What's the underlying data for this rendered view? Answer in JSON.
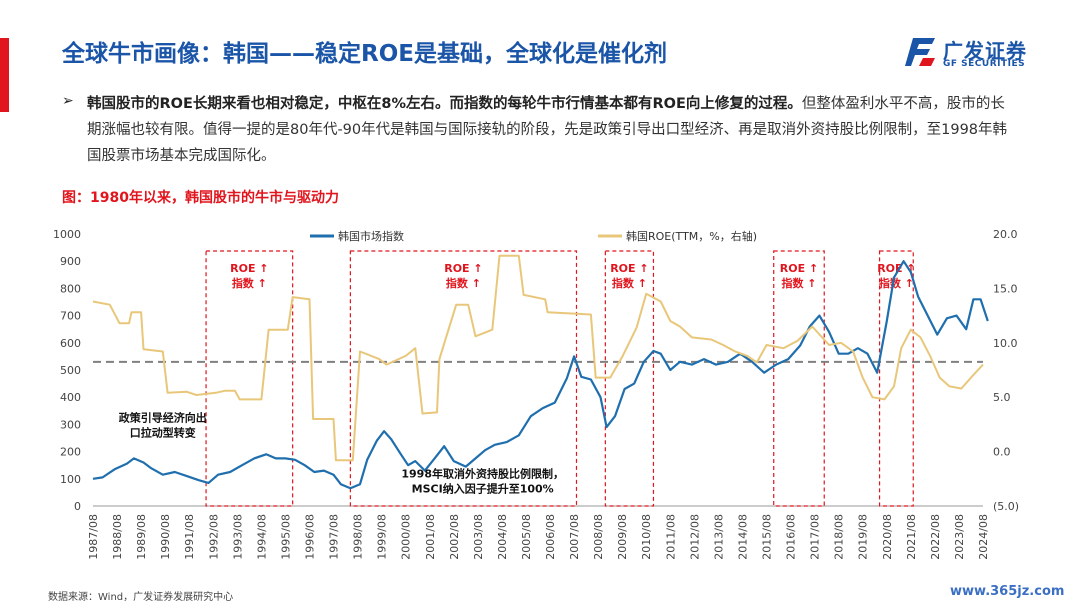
{
  "page": {
    "title": "全球牛市画像：韩国——稳定ROE是基础，全球化是催化剂",
    "logo": {
      "cn": "广发证券",
      "en": "GF SECURITIES"
    },
    "bullet": {
      "marker": "➢",
      "bold": "韩国股市的ROE长期来看也相对稳定，中枢在8%左右。而指数的每轮牛市行情基本都有ROE向上修复的过程。",
      "rest": "但整体盈利水平不高，股市的长期涨幅也较有限。值得一提的是80年代-90年代是韩国与国际接轨的阶段，先是政策引导出口型经济、再是取消外资持股比例限制，至1998年韩国股票市场基本完成国际化。"
    },
    "figure_title": "图：1980年以来，韩国股市的牛市与驱动力",
    "source": "数据来源：Wind，广发证券发展研究中心",
    "watermark": "www.365jz.com"
  },
  "colors": {
    "index_line": "#1f6fae",
    "roe_line": "#e8c77a",
    "dashed_line": "#808080",
    "box": "#e0151d",
    "title": "#1a55a8"
  },
  "chart_data": {
    "type": "line",
    "title": "",
    "x_labels": [
      "1987/08",
      "1988/08",
      "1989/08",
      "1990/08",
      "1991/08",
      "1992/08",
      "1993/08",
      "1994/08",
      "1995/08",
      "1996/08",
      "1997/08",
      "1998/08",
      "1999/08",
      "2000/08",
      "2001/08",
      "2002/08",
      "2003/08",
      "2004/08",
      "2005/08",
      "2006/08",
      "2007/08",
      "2008/08",
      "2009/08",
      "2010/08",
      "2011/08",
      "2012/08",
      "2013/08",
      "2014/08",
      "2015/08",
      "2016/08",
      "2017/08",
      "2018/08",
      "2019/08",
      "2020/08",
      "2021/08",
      "2022/08",
      "2023/08",
      "2024/08"
    ],
    "y_left": {
      "ticks": [
        "0",
        "100",
        "200",
        "300",
        "400",
        "500",
        "600",
        "700",
        "800",
        "900",
        "1000"
      ],
      "range": [
        0,
        1000
      ]
    },
    "y_right": {
      "ticks": [
        "(5.0)",
        "0.0",
        "5.0",
        "10.0",
        "15.0",
        "20.0"
      ],
      "range": [
        -5,
        20
      ],
      "negative_color": "#e0151d"
    },
    "legend_position": "top-center",
    "grid": false,
    "series": [
      {
        "name": "韩国市场指数",
        "axis": "left",
        "points": [
          [
            1987.6,
            100
          ],
          [
            1988.0,
            105
          ],
          [
            1988.5,
            135
          ],
          [
            1989.0,
            155
          ],
          [
            1989.3,
            175
          ],
          [
            1989.7,
            160
          ],
          [
            1990.0,
            140
          ],
          [
            1990.5,
            115
          ],
          [
            1991.0,
            125
          ],
          [
            1991.5,
            110
          ],
          [
            1992.0,
            95
          ],
          [
            1992.4,
            85
          ],
          [
            1992.8,
            115
          ],
          [
            1993.3,
            125
          ],
          [
            1993.8,
            150
          ],
          [
            1994.3,
            175
          ],
          [
            1994.8,
            190
          ],
          [
            1995.2,
            175
          ],
          [
            1995.6,
            175
          ],
          [
            1996.0,
            170
          ],
          [
            1996.4,
            150
          ],
          [
            1996.8,
            125
          ],
          [
            1997.2,
            130
          ],
          [
            1997.6,
            115
          ],
          [
            1997.9,
            80
          ],
          [
            1998.3,
            65
          ],
          [
            1998.7,
            80
          ],
          [
            1999.0,
            170
          ],
          [
            1999.4,
            240
          ],
          [
            1999.7,
            275
          ],
          [
            2000.0,
            245
          ],
          [
            2000.4,
            190
          ],
          [
            2000.7,
            150
          ],
          [
            2001.0,
            165
          ],
          [
            2001.4,
            130
          ],
          [
            2001.8,
            175
          ],
          [
            2002.2,
            220
          ],
          [
            2002.6,
            165
          ],
          [
            2003.1,
            145
          ],
          [
            2003.5,
            175
          ],
          [
            2003.9,
            205
          ],
          [
            2004.3,
            225
          ],
          [
            2004.8,
            235
          ],
          [
            2005.3,
            260
          ],
          [
            2005.8,
            330
          ],
          [
            2006.3,
            360
          ],
          [
            2006.8,
            380
          ],
          [
            2007.3,
            470
          ],
          [
            2007.6,
            550
          ],
          [
            2007.9,
            475
          ],
          [
            2008.3,
            465
          ],
          [
            2008.7,
            400
          ],
          [
            2008.95,
            290
          ],
          [
            2009.3,
            330
          ],
          [
            2009.7,
            430
          ],
          [
            2010.1,
            450
          ],
          [
            2010.5,
            530
          ],
          [
            2010.9,
            570
          ],
          [
            2011.2,
            560
          ],
          [
            2011.6,
            500
          ],
          [
            2012.0,
            530
          ],
          [
            2012.5,
            520
          ],
          [
            2013.0,
            540
          ],
          [
            2013.5,
            520
          ],
          [
            2014.0,
            530
          ],
          [
            2014.5,
            560
          ],
          [
            2015.0,
            530
          ],
          [
            2015.5,
            490
          ],
          [
            2016.0,
            520
          ],
          [
            2016.5,
            540
          ],
          [
            2017.0,
            590
          ],
          [
            2017.4,
            660
          ],
          [
            2017.8,
            700
          ],
          [
            2018.2,
            640
          ],
          [
            2018.6,
            560
          ],
          [
            2019.0,
            560
          ],
          [
            2019.4,
            580
          ],
          [
            2019.8,
            560
          ],
          [
            2020.2,
            490
          ],
          [
            2020.6,
            680
          ],
          [
            2020.9,
            840
          ],
          [
            2021.3,
            900
          ],
          [
            2021.6,
            860
          ],
          [
            2021.9,
            770
          ],
          [
            2022.3,
            700
          ],
          [
            2022.7,
            630
          ],
          [
            2023.1,
            690
          ],
          [
            2023.5,
            700
          ],
          [
            2023.9,
            650
          ],
          [
            2024.2,
            760
          ],
          [
            2024.5,
            760
          ],
          [
            2024.8,
            680
          ]
        ]
      },
      {
        "name": "韩国ROE(TTM，%，右轴)",
        "axis": "right",
        "points": [
          [
            1987.6,
            13.8
          ],
          [
            1988.3,
            13.5
          ],
          [
            1988.7,
            11.8
          ],
          [
            1989.1,
            11.8
          ],
          [
            1989.2,
            12.8
          ],
          [
            1989.6,
            12.8
          ],
          [
            1989.7,
            9.4
          ],
          [
            1990.5,
            9.2
          ],
          [
            1990.7,
            5.4
          ],
          [
            1991.5,
            5.5
          ],
          [
            1991.9,
            5.2
          ],
          [
            1992.7,
            5.4
          ],
          [
            1993.1,
            5.6
          ],
          [
            1993.5,
            5.6
          ],
          [
            1993.7,
            4.8
          ],
          [
            1994.6,
            4.8
          ],
          [
            1994.9,
            11.2
          ],
          [
            1995.7,
            11.2
          ],
          [
            1995.9,
            14.2
          ],
          [
            1996.6,
            14.0
          ],
          [
            1996.75,
            3.0
          ],
          [
            1997.6,
            3.0
          ],
          [
            1997.7,
            -0.8
          ],
          [
            1998.4,
            -0.8
          ],
          [
            1998.7,
            9.2
          ],
          [
            1999.5,
            8.5
          ],
          [
            1999.8,
            8.0
          ],
          [
            2000.6,
            8.8
          ],
          [
            2001.0,
            9.5
          ],
          [
            2001.3,
            3.5
          ],
          [
            2001.9,
            3.6
          ],
          [
            2002.0,
            8.5
          ],
          [
            2002.7,
            13.5
          ],
          [
            2003.2,
            13.5
          ],
          [
            2003.5,
            10.6
          ],
          [
            2004.2,
            11.2
          ],
          [
            2004.5,
            18.0
          ],
          [
            2005.3,
            18.0
          ],
          [
            2005.5,
            14.4
          ],
          [
            2006.4,
            14.0
          ],
          [
            2006.5,
            12.8
          ],
          [
            2008.3,
            12.6
          ],
          [
            2008.5,
            6.8
          ],
          [
            2009.1,
            6.8
          ],
          [
            2009.6,
            8.7
          ],
          [
            2010.2,
            11.4
          ],
          [
            2010.6,
            14.5
          ],
          [
            2011.2,
            13.8
          ],
          [
            2011.6,
            12.0
          ],
          [
            2012.0,
            11.5
          ],
          [
            2012.5,
            10.5
          ],
          [
            2013.3,
            10.3
          ],
          [
            2013.8,
            9.8
          ],
          [
            2014.3,
            9.2
          ],
          [
            2014.8,
            8.8
          ],
          [
            2015.2,
            8.2
          ],
          [
            2015.6,
            9.8
          ],
          [
            2016.3,
            9.5
          ],
          [
            2016.9,
            10.2
          ],
          [
            2017.5,
            11.5
          ],
          [
            2018.2,
            9.8
          ],
          [
            2018.7,
            10.0
          ],
          [
            2019.2,
            9.2
          ],
          [
            2019.6,
            6.8
          ],
          [
            2020.0,
            5.0
          ],
          [
            2020.5,
            4.8
          ],
          [
            2020.9,
            6.0
          ],
          [
            2021.2,
            9.5
          ],
          [
            2021.6,
            11.2
          ],
          [
            2022.0,
            10.5
          ],
          [
            2022.4,
            8.8
          ],
          [
            2022.8,
            6.8
          ],
          [
            2023.2,
            6.0
          ],
          [
            2023.7,
            5.8
          ],
          [
            2024.1,
            6.8
          ],
          [
            2024.6,
            8.0
          ]
        ]
      }
    ],
    "reference_line": {
      "axis": "left",
      "value": 530,
      "style": "dashed"
    },
    "boxes": [
      {
        "x0": 1992.3,
        "x1": 1995.9,
        "label1": "ROE ↑",
        "label2": "指数 ↑"
      },
      {
        "x0": 1998.3,
        "x1": 2007.7,
        "label1": "ROE ↑",
        "label2": "指数 ↑"
      },
      {
        "x0": 2008.9,
        "x1": 2010.9,
        "label1": "ROE ↑",
        "label2": "指数 ↑"
      },
      {
        "x0": 2015.9,
        "x1": 2018.0,
        "label1": "ROE ↑",
        "label2": "指数 ↑"
      },
      {
        "x0": 2020.3,
        "x1": 2021.7,
        "label1": "ROE ↑",
        "label2": "指数 ↑"
      }
    ],
    "annotations": [
      {
        "lines": [
          "政策引导经济向出",
          "口拉动型转变"
        ],
        "x": 1990.5,
        "y": 310
      },
      {
        "lines": [
          "1998年取消外资持股比例限制，",
          "MSCI纳入因子提升至100%"
        ],
        "x": 2003.8,
        "y": 105
      }
    ]
  }
}
